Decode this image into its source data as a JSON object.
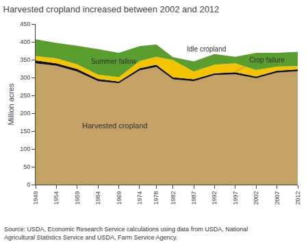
{
  "chart_data": {
    "type": "area",
    "stacked": true,
    "title": "Harvested cropland increased between 2002 and 2012",
    "ylabel": "Million acres",
    "annotations": [
      "Source: USDA, Economic Research Service calculations using data from USDA, National\nAgricultural Statistics Service and USDA, Farm Service Agency."
    ],
    "x": [
      1949,
      1954,
      1959,
      1964,
      1969,
      1974,
      1978,
      1982,
      1987,
      1992,
      1997,
      2002,
      2007,
      2012
    ],
    "xlim": [
      1949,
      2012
    ],
    "xticks": [
      1949,
      1954,
      1959,
      1964,
      1969,
      1974,
      1978,
      1982,
      1987,
      1992,
      1997,
      2002,
      2007,
      2012
    ],
    "ylim": [
      0,
      450
    ],
    "yticks": [
      0,
      50,
      100,
      150,
      200,
      250,
      300,
      350,
      400,
      450
    ],
    "grid": false,
    "series": [
      {
        "name": "Harvested cropland",
        "color": "#C4A265",
        "values": [
          340,
          333,
          317,
          290,
          284,
          320,
          330,
          295,
          290,
          307,
          309,
          298,
          314,
          318
        ]
      },
      {
        "name": "Crop failure",
        "color": "#111111",
        "values": [
          8,
          7,
          7,
          6,
          5,
          6,
          6,
          6,
          5,
          5,
          6,
          5,
          5,
          5
        ]
      },
      {
        "name": "Summer fallow",
        "color": "#F5C400",
        "values": [
          12,
          14,
          13,
          12,
          12,
          20,
          22,
          48,
          22,
          24,
          25,
          18,
          12,
          9
        ]
      },
      {
        "name": "Idle cropland",
        "color": "#5A9E2F",
        "values": [
          47,
          43,
          52,
          72,
          68,
          42,
          35,
          8,
          28,
          30,
          18,
          48,
          38,
          40
        ]
      }
    ]
  }
}
